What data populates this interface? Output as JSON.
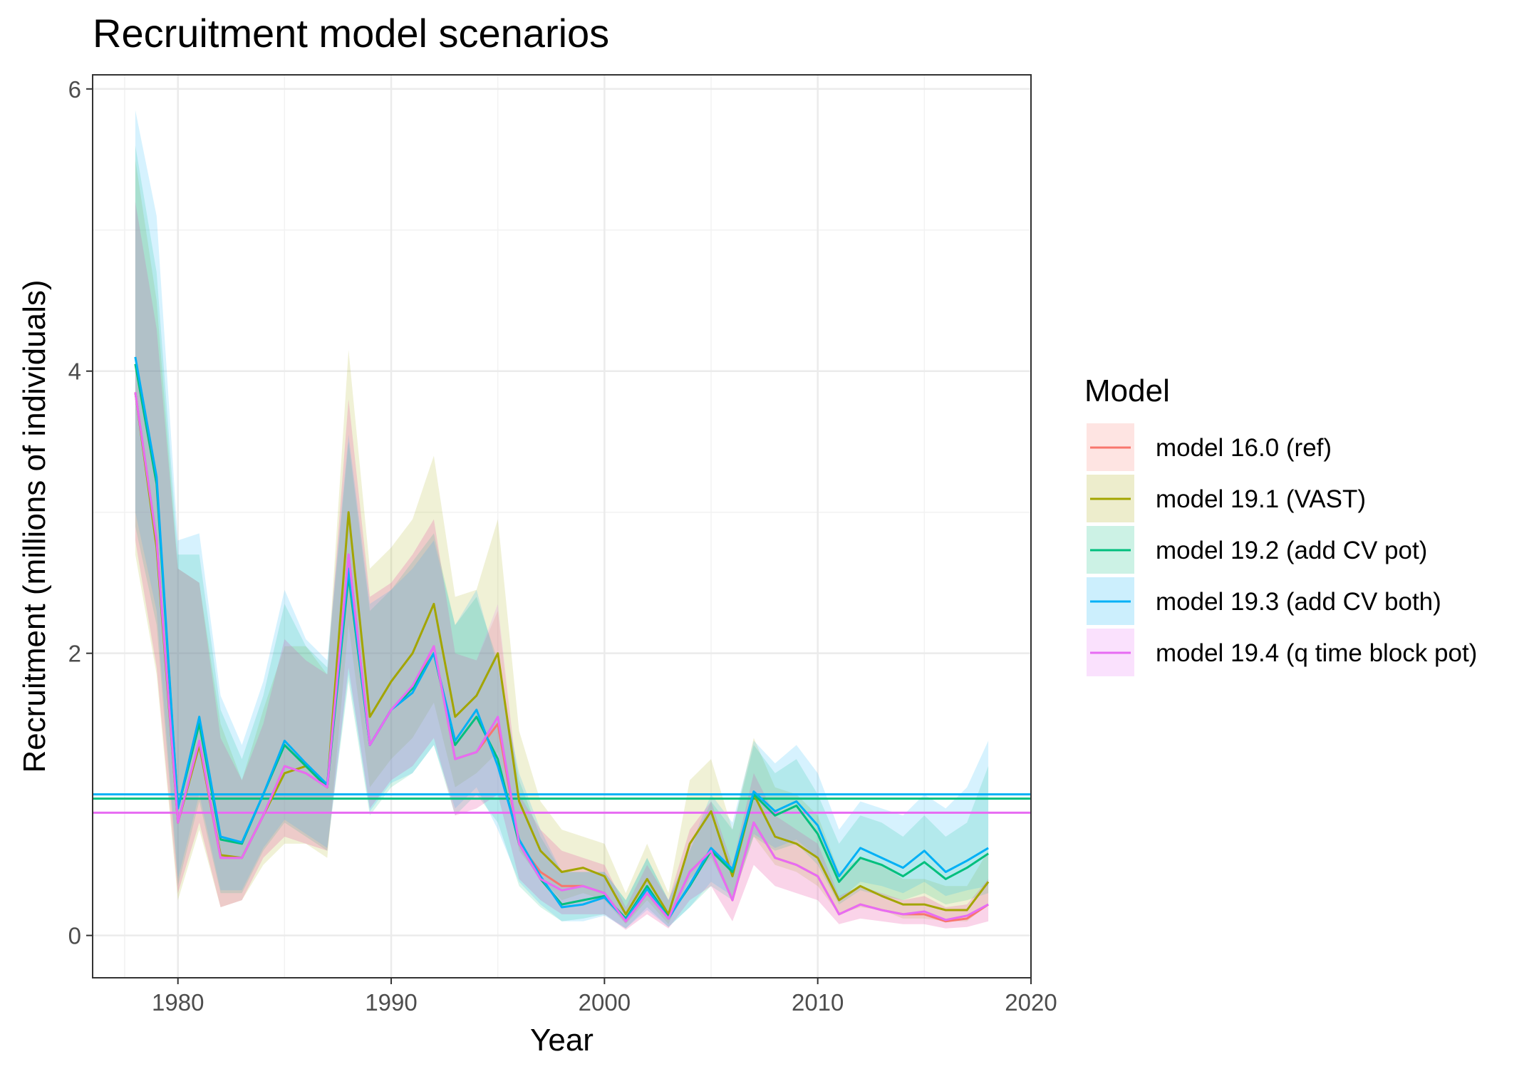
{
  "chart_data": {
    "type": "line",
    "title": "Recruitment model scenarios",
    "xlabel": "Year",
    "ylabel": "Recruitment (millions of individuals)",
    "xlim": [
      1976,
      2020
    ],
    "ylim": [
      -0.3,
      6.1
    ],
    "x_ticks": [
      1980,
      1990,
      2000,
      2010,
      2020
    ],
    "x_tick_labels": [
      "1980",
      "1990",
      "2000",
      "2010",
      "2020"
    ],
    "y_ticks": [
      0,
      2,
      4,
      6
    ],
    "y_tick_labels": [
      "0",
      "2",
      "4",
      "6"
    ],
    "grid": true,
    "legend": {
      "title": "Model",
      "position": "right"
    },
    "x": [
      1978,
      1979,
      1980,
      1981,
      1982,
      1983,
      1984,
      1985,
      1986,
      1987,
      1988,
      1989,
      1990,
      1991,
      1992,
      1993,
      1994,
      1995,
      1996,
      1997,
      1998,
      1999,
      2000,
      2001,
      2002,
      2003,
      2004,
      2005,
      2006,
      2007,
      2008,
      2009,
      2010,
      2011,
      2012,
      2013,
      2014,
      2015,
      2016,
      2017,
      2018
    ],
    "series": [
      {
        "name": "model 16.0 (ref)",
        "color": "#F8766D",
        "values": [
          3.85,
          2.8,
          0.8,
          1.35,
          0.55,
          0.55,
          0.85,
          1.2,
          1.15,
          1.05,
          2.7,
          1.35,
          1.6,
          1.75,
          2.05,
          1.25,
          1.3,
          1.5,
          0.65,
          0.45,
          0.35,
          0.35,
          0.3,
          0.1,
          0.3,
          0.12,
          0.45,
          0.6,
          0.25,
          0.8,
          0.55,
          0.5,
          0.42,
          0.15,
          0.22,
          0.18,
          0.15,
          0.15,
          0.1,
          0.12,
          0.22
        ],
        "lower": [
          2.8,
          1.9,
          0.3,
          0.8,
          0.2,
          0.25,
          0.55,
          0.7,
          0.65,
          0.6,
          1.9,
          0.9,
          1.1,
          1.2,
          1.4,
          0.85,
          0.9,
          1.0,
          0.4,
          0.25,
          0.15,
          0.15,
          0.15,
          0.04,
          0.15,
          0.05,
          0.25,
          0.35,
          0.1,
          0.5,
          0.35,
          0.3,
          0.25,
          0.08,
          0.12,
          0.1,
          0.08,
          0.08,
          0.05,
          0.06,
          0.1
        ],
        "upper": [
          5.2,
          4.3,
          2.6,
          2.5,
          1.4,
          1.1,
          1.5,
          2.1,
          1.95,
          1.85,
          3.8,
          2.4,
          2.5,
          2.7,
          2.95,
          2.0,
          1.95,
          2.3,
          1.0,
          0.75,
          0.6,
          0.55,
          0.5,
          0.2,
          0.5,
          0.25,
          0.75,
          0.95,
          0.5,
          1.15,
          0.85,
          0.75,
          0.65,
          0.28,
          0.35,
          0.3,
          0.25,
          0.28,
          0.2,
          0.22,
          0.4
        ],
        "hline": null
      },
      {
        "name": "model 19.1 (VAST)",
        "color": "#A3A500",
        "values": [
          3.85,
          2.75,
          0.8,
          1.35,
          0.57,
          0.55,
          0.85,
          1.15,
          1.2,
          1.05,
          3.0,
          1.55,
          1.8,
          2.0,
          2.35,
          1.55,
          1.7,
          2.0,
          0.95,
          0.6,
          0.45,
          0.48,
          0.42,
          0.15,
          0.4,
          0.15,
          0.65,
          0.88,
          0.42,
          1.0,
          0.7,
          0.65,
          0.55,
          0.25,
          0.35,
          0.28,
          0.22,
          0.22,
          0.18,
          0.18,
          0.38
        ],
        "lower": [
          2.7,
          1.85,
          0.25,
          0.75,
          0.2,
          0.25,
          0.5,
          0.65,
          0.65,
          0.55,
          2.2,
          1.05,
          1.25,
          1.4,
          1.65,
          1.05,
          1.15,
          1.3,
          0.6,
          0.4,
          0.25,
          0.3,
          0.25,
          0.08,
          0.25,
          0.08,
          0.4,
          0.55,
          0.25,
          0.7,
          0.5,
          0.45,
          0.35,
          0.15,
          0.2,
          0.18,
          0.12,
          0.12,
          0.1,
          0.1,
          0.22
        ],
        "upper": [
          5.5,
          4.5,
          2.6,
          2.5,
          1.5,
          1.1,
          1.6,
          2.05,
          2.05,
          1.85,
          4.15,
          2.6,
          2.75,
          2.95,
          3.4,
          2.4,
          2.45,
          2.95,
          1.45,
          0.95,
          0.75,
          0.7,
          0.65,
          0.3,
          0.65,
          0.3,
          1.1,
          1.25,
          0.75,
          1.4,
          1.05,
          1.0,
          0.85,
          0.45,
          0.55,
          0.5,
          0.4,
          0.4,
          0.35,
          0.35,
          0.6
        ],
        "hline": null
      },
      {
        "name": "model 19.2 (add CV pot)",
        "color": "#00BF7D",
        "values": [
          4.05,
          3.2,
          0.9,
          1.5,
          0.68,
          0.65,
          1.0,
          1.35,
          1.2,
          1.05,
          2.55,
          1.35,
          1.6,
          1.75,
          2.0,
          1.35,
          1.55,
          1.25,
          0.65,
          0.4,
          0.22,
          0.25,
          0.28,
          0.12,
          0.35,
          0.13,
          0.35,
          0.6,
          0.45,
          1.0,
          0.85,
          0.92,
          0.72,
          0.38,
          0.55,
          0.5,
          0.42,
          0.52,
          0.4,
          0.48,
          0.58
        ],
        "lower": [
          2.9,
          2.2,
          0.35,
          0.95,
          0.3,
          0.3,
          0.6,
          0.8,
          0.7,
          0.6,
          1.8,
          0.85,
          1.05,
          1.15,
          1.35,
          0.85,
          1.0,
          0.8,
          0.35,
          0.2,
          0.1,
          0.12,
          0.15,
          0.05,
          0.2,
          0.06,
          0.2,
          0.35,
          0.25,
          0.7,
          0.6,
          0.65,
          0.5,
          0.22,
          0.32,
          0.28,
          0.25,
          0.3,
          0.22,
          0.25,
          0.3
        ],
        "upper": [
          5.6,
          4.7,
          2.7,
          2.7,
          1.6,
          1.25,
          1.7,
          2.35,
          2.05,
          1.9,
          3.5,
          2.3,
          2.45,
          2.65,
          2.85,
          2.2,
          2.4,
          1.95,
          1.1,
          0.7,
          0.45,
          0.45,
          0.45,
          0.25,
          0.55,
          0.25,
          0.6,
          0.95,
          0.75,
          1.35,
          1.15,
          1.25,
          1.0,
          0.65,
          0.85,
          0.8,
          0.7,
          0.85,
          0.7,
          0.8,
          1.2
        ],
        "hline": 0.97
      },
      {
        "name": "model 19.3 (add CV both)",
        "color": "#00B0F6",
        "values": [
          4.1,
          3.25,
          0.9,
          1.55,
          0.7,
          0.66,
          1.0,
          1.38,
          1.22,
          1.07,
          2.6,
          1.35,
          1.6,
          1.72,
          2.0,
          1.38,
          1.6,
          1.2,
          0.68,
          0.42,
          0.2,
          0.22,
          0.27,
          0.11,
          0.33,
          0.12,
          0.36,
          0.62,
          0.47,
          1.02,
          0.88,
          0.95,
          0.78,
          0.42,
          0.62,
          0.55,
          0.48,
          0.6,
          0.45,
          0.53,
          0.62
        ],
        "lower": [
          3.0,
          2.3,
          0.4,
          1.0,
          0.32,
          0.32,
          0.62,
          0.82,
          0.72,
          0.62,
          1.85,
          0.88,
          1.08,
          1.15,
          1.35,
          0.9,
          1.05,
          0.75,
          0.38,
          0.22,
          0.1,
          0.1,
          0.14,
          0.05,
          0.18,
          0.06,
          0.2,
          0.38,
          0.28,
          0.72,
          0.62,
          0.68,
          0.55,
          0.25,
          0.38,
          0.35,
          0.3,
          0.38,
          0.28,
          0.32,
          0.35
        ],
        "upper": [
          5.85,
          5.1,
          2.8,
          2.85,
          1.7,
          1.35,
          1.8,
          2.45,
          2.1,
          1.95,
          3.55,
          2.35,
          2.45,
          2.6,
          2.8,
          2.2,
          2.45,
          1.9,
          1.15,
          0.75,
          0.45,
          0.45,
          0.45,
          0.25,
          0.55,
          0.25,
          0.62,
          1.0,
          0.8,
          1.38,
          1.22,
          1.35,
          1.15,
          0.75,
          0.95,
          0.9,
          0.85,
          1.0,
          0.9,
          1.05,
          1.38
        ],
        "hline": 1.0
      },
      {
        "name": "model 19.4 (q time block pot)",
        "color": "#E76BF3",
        "values": [
          3.85,
          2.8,
          0.8,
          1.38,
          0.55,
          0.55,
          0.85,
          1.2,
          1.15,
          1.05,
          2.7,
          1.35,
          1.6,
          1.77,
          2.05,
          1.25,
          1.3,
          1.55,
          0.65,
          0.4,
          0.32,
          0.35,
          0.3,
          0.1,
          0.3,
          0.12,
          0.45,
          0.6,
          0.25,
          0.8,
          0.55,
          0.5,
          0.42,
          0.15,
          0.22,
          0.18,
          0.15,
          0.17,
          0.11,
          0.14,
          0.22
        ],
        "lower": [
          2.8,
          1.9,
          0.3,
          0.8,
          0.2,
          0.25,
          0.55,
          0.7,
          0.65,
          0.6,
          1.9,
          0.9,
          1.1,
          1.2,
          1.4,
          0.85,
          0.9,
          1.0,
          0.4,
          0.25,
          0.15,
          0.15,
          0.15,
          0.04,
          0.15,
          0.05,
          0.25,
          0.35,
          0.1,
          0.5,
          0.35,
          0.3,
          0.25,
          0.08,
          0.12,
          0.1,
          0.08,
          0.08,
          0.05,
          0.06,
          0.1
        ],
        "upper": [
          5.2,
          4.3,
          2.6,
          2.5,
          1.4,
          1.1,
          1.5,
          2.1,
          1.95,
          1.85,
          3.8,
          2.4,
          2.5,
          2.7,
          2.95,
          2.0,
          1.95,
          2.35,
          1.0,
          0.75,
          0.6,
          0.55,
          0.5,
          0.2,
          0.5,
          0.25,
          0.75,
          0.95,
          0.5,
          1.15,
          0.85,
          0.75,
          0.65,
          0.28,
          0.35,
          0.3,
          0.25,
          0.28,
          0.2,
          0.22,
          0.4
        ],
        "hline": 0.87
      }
    ]
  }
}
